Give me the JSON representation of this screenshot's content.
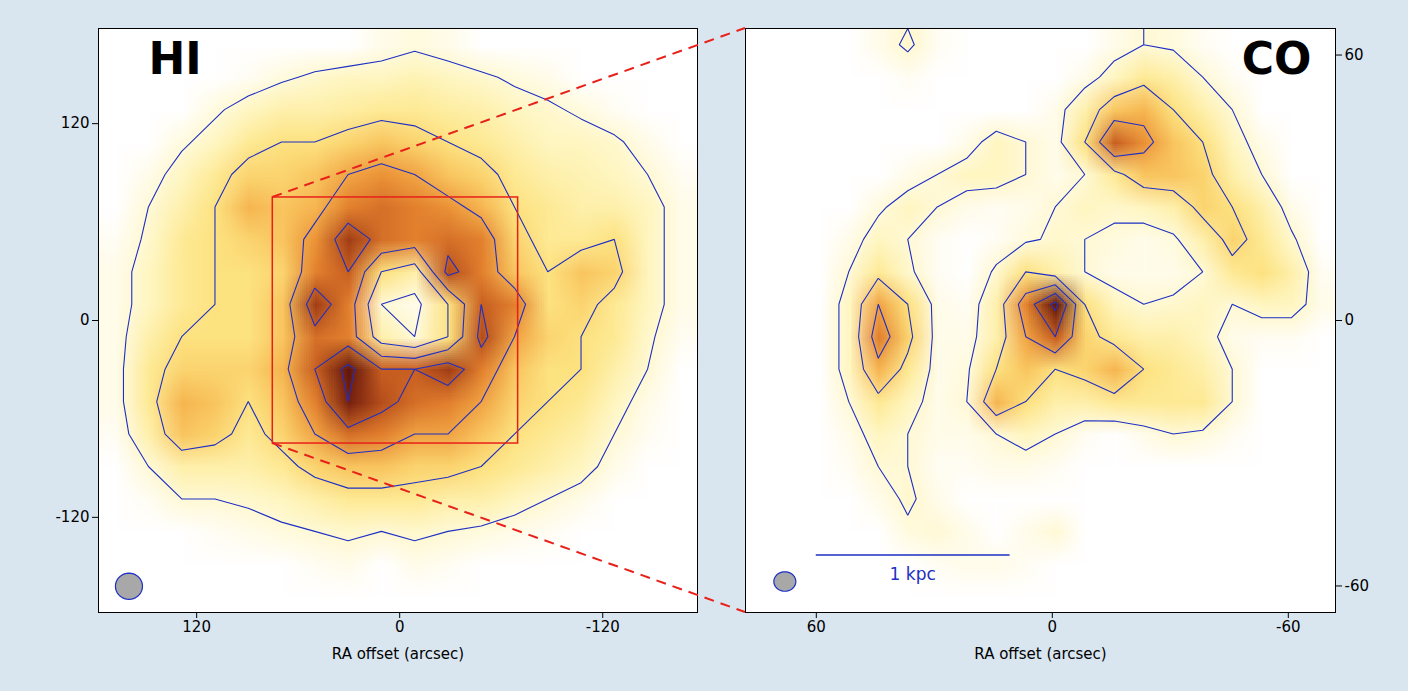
{
  "chart_data": [
    {
      "type": "contour_map",
      "title": "HI",
      "xlabel": "RA offset (arcsec)",
      "xlim": [
        178,
        -176
      ],
      "ylim": [
        -178,
        178
      ],
      "xticks": [
        120,
        0,
        -120
      ],
      "yticks": [
        -120,
        0,
        120
      ],
      "zlim": [
        0,
        10
      ],
      "contour_levels": [
        1,
        3,
        5,
        7,
        9
      ],
      "cells": [
        [
          0,
          0,
          0,
          0,
          0,
          0,
          0,
          0,
          0.5,
          0.8,
          0.5,
          0,
          0,
          0,
          0,
          0,
          0,
          0
        ],
        [
          0,
          0,
          0,
          0,
          0.3,
          0.8,
          1.2,
          1.5,
          1.5,
          1.8,
          1.5,
          1.2,
          0.8,
          0.5,
          0,
          0,
          0,
          0
        ],
        [
          0,
          0,
          0,
          0.8,
          1.5,
          2,
          2,
          2.2,
          2.5,
          2.5,
          2.2,
          2,
          1.5,
          1.2,
          0.8,
          0.3,
          0,
          0
        ],
        [
          0,
          0,
          0.8,
          1.5,
          2.5,
          3,
          3,
          3.5,
          4,
          3.5,
          3,
          2.5,
          2,
          1.5,
          1.5,
          1.2,
          0.5,
          0
        ],
        [
          0,
          0.5,
          1.5,
          2.5,
          3.5,
          3.5,
          4,
          5,
          5.5,
          5,
          4,
          3.5,
          2.5,
          2,
          1.8,
          1.5,
          1,
          0.3
        ],
        [
          0,
          1,
          2,
          3,
          4.5,
          4,
          4.5,
          6,
          6.5,
          6,
          5.5,
          4.5,
          3,
          2.5,
          2,
          2,
          1.5,
          0.5
        ],
        [
          0.3,
          1.2,
          2.5,
          3,
          3.5,
          4,
          5.5,
          8,
          6.5,
          6,
          6.5,
          6,
          3.5,
          2.5,
          2.5,
          3,
          1.5,
          0.5
        ],
        [
          0.5,
          1.5,
          2.5,
          3,
          3,
          3.5,
          6,
          7,
          3,
          2,
          7.5,
          6,
          4,
          3,
          4,
          3.5,
          1.5,
          0.5
        ],
        [
          0.5,
          1.5,
          2.5,
          3,
          3,
          4,
          8,
          6,
          1,
          0.5,
          3,
          7,
          6,
          3,
          3.5,
          2.5,
          1.5,
          0.5
        ],
        [
          0.5,
          2,
          3,
          3,
          3,
          4,
          6.5,
          6,
          2,
          1,
          3,
          7.5,
          5,
          3.5,
          3,
          2.5,
          1.2,
          0.3
        ],
        [
          0.5,
          2.5,
          3.5,
          3.5,
          3.5,
          4.5,
          7,
          9.5,
          7,
          7,
          8,
          6,
          4,
          3,
          3,
          2,
          1,
          0
        ],
        [
          0.5,
          2.5,
          4.5,
          4,
          3,
          4,
          6,
          9,
          7.5,
          6.5,
          6,
          5,
          3.5,
          3,
          2.5,
          1.5,
          0.5,
          0
        ],
        [
          0.3,
          2,
          4,
          3.5,
          2.5,
          3.5,
          5,
          6.5,
          6,
          5,
          5,
          4,
          3,
          2.5,
          2,
          1,
          0.3,
          0
        ],
        [
          0,
          1,
          2,
          2,
          2,
          2.5,
          3.5,
          4,
          4,
          3.5,
          3.5,
          3,
          2.5,
          2,
          1.5,
          0.5,
          0,
          0
        ],
        [
          0,
          0.3,
          1,
          1,
          1.2,
          1.5,
          2,
          2.5,
          2.5,
          2.5,
          2,
          2,
          1.5,
          1,
          0.5,
          0,
          0,
          0
        ],
        [
          0,
          0,
          0,
          0.3,
          0.5,
          0.8,
          1,
          1.2,
          1,
          1.2,
          1,
          0.8,
          0.5,
          0.3,
          0,
          0,
          0,
          0
        ],
        [
          0,
          0,
          0,
          0,
          0,
          0,
          0.3,
          0.5,
          0,
          0.5,
          0.3,
          0,
          0,
          0,
          0,
          0,
          0,
          0
        ],
        [
          0,
          0,
          0,
          0,
          0,
          0,
          0,
          0,
          0,
          0,
          0,
          0,
          0,
          0,
          0,
          0,
          0,
          0
        ]
      ],
      "zoom_box": {
        "x": [
          75,
          -70
        ],
        "y": [
          75,
          -75
        ]
      },
      "beam": {
        "x": 160,
        "y": -162,
        "rx": 8,
        "ry": 8
      }
    },
    {
      "type": "contour_map",
      "title": "CO",
      "xlabel": "RA offset (arcsec)",
      "xlim": [
        78,
        -72
      ],
      "ylim": [
        -66,
        66
      ],
      "xticks": [
        60,
        0,
        -60
      ],
      "yticks": [
        -60,
        0,
        60
      ],
      "zlim": [
        0,
        10
      ],
      "contour_levels": [
        1,
        3,
        5,
        7,
        9
      ],
      "cells": [
        [
          0,
          0,
          0,
          0,
          0.5,
          1.2,
          0.3,
          0,
          0,
          0,
          0,
          0,
          0.5,
          1,
          0.8,
          0.3,
          0,
          0,
          0,
          0
        ],
        [
          0,
          0,
          0,
          0,
          0,
          0.3,
          0,
          0,
          0,
          0,
          0,
          0.5,
          1.5,
          2.5,
          2,
          1,
          0.3,
          0,
          0,
          0
        ],
        [
          0,
          0,
          0,
          0,
          0,
          0,
          0,
          0,
          0,
          0,
          0.5,
          2,
          4,
          4.5,
          3,
          2,
          1,
          0,
          0,
          0
        ],
        [
          0,
          0,
          0,
          0,
          0,
          0,
          0,
          0.5,
          1.5,
          1,
          0.5,
          3,
          7,
          5.5,
          4,
          3,
          1.5,
          0.5,
          0,
          0
        ],
        [
          0,
          0,
          0,
          0,
          0,
          0.5,
          1,
          1.5,
          1.5,
          1,
          0.5,
          1,
          2.5,
          4,
          4,
          3.5,
          2,
          1,
          0,
          0
        ],
        [
          0,
          0,
          0,
          0,
          0.8,
          1.5,
          1,
          0.5,
          0.3,
          0.5,
          1,
          1.5,
          1.2,
          1.5,
          2,
          3.5,
          3,
          2,
          0.5,
          0
        ],
        [
          0,
          0,
          0,
          0.5,
          1.5,
          1,
          0.3,
          0,
          0.3,
          0.8,
          1.2,
          1,
          0.8,
          0.5,
          0.8,
          2,
          3.5,
          2.5,
          1.2,
          0
        ],
        [
          0,
          0,
          0,
          1,
          2.5,
          1.2,
          0.3,
          0,
          1.2,
          3,
          2,
          1,
          0.5,
          0.5,
          0.5,
          1,
          2.5,
          3,
          2,
          0.3
        ],
        [
          0,
          0,
          0,
          1.5,
          5,
          3,
          0.5,
          0.3,
          2,
          6,
          9.5,
          3,
          1.5,
          1,
          1.2,
          1.5,
          1,
          1.5,
          1.5,
          0.5
        ],
        [
          0,
          0,
          0,
          1.5,
          6,
          3.5,
          0.5,
          0.5,
          2,
          5,
          7,
          3.5,
          2.5,
          2,
          2,
          1.5,
          0.5,
          0.3,
          0.3,
          0
        ],
        [
          0,
          0,
          0,
          1.5,
          4.5,
          2.5,
          0.5,
          0.8,
          3,
          4,
          3,
          3.5,
          4.5,
          3,
          2.5,
          2,
          1,
          0,
          0,
          0
        ],
        [
          0,
          0,
          0,
          1,
          2.5,
          1.5,
          0.5,
          1,
          4.5,
          3,
          2,
          2,
          2.5,
          2.5,
          2.5,
          2.5,
          1,
          0,
          0,
          0
        ],
        [
          0,
          0,
          0,
          0.5,
          1.5,
          1,
          0.5,
          0.5,
          1,
          1.5,
          1,
          0.3,
          0,
          0.5,
          1,
          0.8,
          0.3,
          0,
          0,
          0
        ],
        [
          0,
          0,
          0,
          0.3,
          1,
          1,
          0.3,
          0.3,
          0.5,
          0.5,
          0.3,
          0,
          0,
          0,
          0,
          0,
          0,
          0,
          0,
          0
        ],
        [
          0,
          0,
          0,
          0,
          0.5,
          1.2,
          0.5,
          0,
          0,
          0,
          0,
          0,
          0,
          0,
          0,
          0,
          0,
          0,
          0,
          0
        ],
        [
          0,
          0,
          0,
          0,
          0,
          0.8,
          1,
          0.5,
          0,
          0.5,
          1,
          0,
          0,
          0,
          0,
          0,
          0,
          0,
          0,
          0
        ],
        [
          0,
          0,
          0,
          0,
          0,
          0,
          0.3,
          0.5,
          0.5,
          0.3,
          0,
          0,
          0,
          0,
          0,
          0,
          0,
          0,
          0,
          0
        ],
        [
          0,
          0,
          0,
          0,
          0,
          0,
          0,
          0,
          0,
          0,
          0,
          0,
          0,
          0,
          0,
          0,
          0,
          0,
          0,
          0
        ]
      ],
      "scale_bar": {
        "label": "1 kpc",
        "x": [
          60,
          11
        ],
        "y": -53
      },
      "beam": {
        "x": 68,
        "y": -59,
        "rx": 2.8,
        "ry": 2.2
      }
    }
  ]
}
